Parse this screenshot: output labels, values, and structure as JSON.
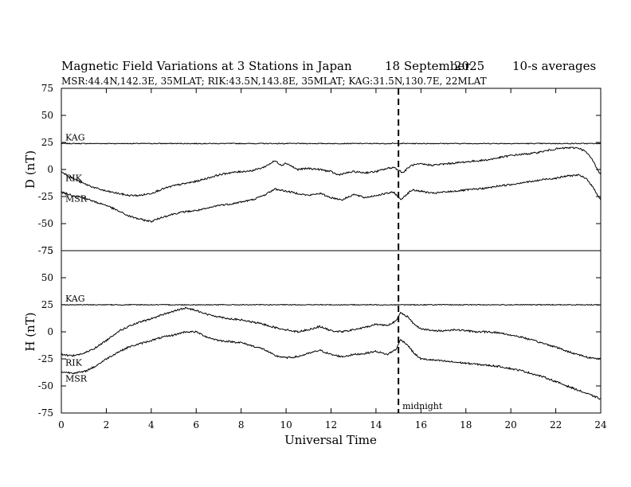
{
  "header": {
    "title": "Magnetic Field Variations at 3 Stations in Japan",
    "date": "18 September",
    "year": "2025",
    "averaging": "10-s averages",
    "stations": "MSR:44.4N,142.3E, 35MLAT;  RIK:43.5N,143.8E, 35MLAT;  KAG:31.5N,130.7E, 22MLAT"
  },
  "chart_data": {
    "type": "line",
    "xlabel": "Universal Time",
    "xlim": [
      0,
      24
    ],
    "x_ticks": [
      0,
      2,
      4,
      6,
      8,
      10,
      12,
      14,
      16,
      18,
      20,
      22,
      24
    ],
    "annotation": {
      "x": 15,
      "label": "midnight",
      "style": "dashed-vertical-line"
    },
    "panels": [
      {
        "id": "D",
        "ylabel": "D (nT)",
        "ylim": [
          -75,
          75
        ],
        "y_ticks": [
          75,
          50,
          25,
          0,
          -25,
          -50,
          -75
        ],
        "series": [
          {
            "name": "KAG",
            "label": "KAG",
            "noise": 0.4,
            "points": [
              [
                0,
                24
              ],
              [
                24,
                24
              ]
            ]
          },
          {
            "name": "RIK",
            "label": "RIK",
            "noise": 0.8,
            "points": [
              [
                0,
                -2
              ],
              [
                0.5,
                -8
              ],
              [
                1,
                -13
              ],
              [
                1.5,
                -17
              ],
              [
                2,
                -20
              ],
              [
                2.5,
                -22
              ],
              [
                3,
                -24
              ],
              [
                3.5,
                -24
              ],
              [
                4,
                -22
              ],
              [
                4.5,
                -18
              ],
              [
                5,
                -15
              ],
              [
                5.5,
                -13
              ],
              [
                6,
                -11
              ],
              [
                6.5,
                -8
              ],
              [
                7,
                -5
              ],
              [
                7.5,
                -3
              ],
              [
                8,
                -2
              ],
              [
                8.5,
                -1
              ],
              [
                9,
                2
              ],
              [
                9.5,
                8
              ],
              [
                9.8,
                4
              ],
              [
                10,
                6
              ],
              [
                10.5,
                0
              ],
              [
                11,
                1
              ],
              [
                11.5,
                0
              ],
              [
                12,
                -2
              ],
              [
                12.3,
                -5
              ],
              [
                12.5,
                -4
              ],
              [
                13,
                -2
              ],
              [
                13.5,
                -3
              ],
              [
                14,
                -2
              ],
              [
                14.5,
                1
              ],
              [
                14.8,
                2
              ],
              [
                15.2,
                -3
              ],
              [
                15.4,
                1
              ],
              [
                15.6,
                4
              ],
              [
                16,
                5
              ],
              [
                16.5,
                4
              ],
              [
                17,
                5
              ],
              [
                17.5,
                6
              ],
              [
                18,
                7
              ],
              [
                18.5,
                8
              ],
              [
                19,
                9
              ],
              [
                19.5,
                11
              ],
              [
                20,
                13
              ],
              [
                20.5,
                14
              ],
              [
                21,
                15
              ],
              [
                21.5,
                17
              ],
              [
                22,
                19
              ],
              [
                22.5,
                20
              ],
              [
                23,
                20
              ],
              [
                23.3,
                17
              ],
              [
                23.6,
                10
              ],
              [
                24,
                -5
              ]
            ]
          },
          {
            "name": "MSR",
            "label": "MSR",
            "noise": 0.8,
            "points": [
              [
                0,
                -21
              ],
              [
                0.5,
                -24
              ],
              [
                1,
                -26
              ],
              [
                1.5,
                -30
              ],
              [
                2,
                -33
              ],
              [
                2.5,
                -38
              ],
              [
                3,
                -43
              ],
              [
                3.5,
                -46
              ],
              [
                4,
                -48
              ],
              [
                4.5,
                -44
              ],
              [
                5,
                -41
              ],
              [
                5.5,
                -39
              ],
              [
                6,
                -38
              ],
              [
                6.5,
                -36
              ],
              [
                7,
                -33
              ],
              [
                7.5,
                -32
              ],
              [
                8,
                -30
              ],
              [
                8.5,
                -28
              ],
              [
                9,
                -24
              ],
              [
                9.5,
                -18
              ],
              [
                10,
                -20
              ],
              [
                10.5,
                -22
              ],
              [
                11,
                -24
              ],
              [
                11.5,
                -22
              ],
              [
                12,
                -26
              ],
              [
                12.5,
                -28
              ],
              [
                13,
                -23
              ],
              [
                13.5,
                -26
              ],
              [
                14,
                -24
              ],
              [
                14.5,
                -22
              ],
              [
                14.8,
                -21
              ],
              [
                15.1,
                -28
              ],
              [
                15.3,
                -24
              ],
              [
                15.6,
                -19
              ],
              [
                16,
                -20
              ],
              [
                16.5,
                -22
              ],
              [
                17,
                -21
              ],
              [
                17.5,
                -20
              ],
              [
                18,
                -19
              ],
              [
                18.5,
                -18
              ],
              [
                19,
                -17
              ],
              [
                19.5,
                -15
              ],
              [
                20,
                -14
              ],
              [
                20.5,
                -12
              ],
              [
                21,
                -11
              ],
              [
                21.5,
                -9
              ],
              [
                22,
                -8
              ],
              [
                22.5,
                -6
              ],
              [
                23,
                -5
              ],
              [
                23.4,
                -9
              ],
              [
                23.7,
                -18
              ],
              [
                24,
                -28
              ]
            ]
          }
        ]
      },
      {
        "id": "H",
        "ylabel": "H (nT)",
        "ylim": [
          -75,
          75
        ],
        "y_ticks": [
          75,
          50,
          25,
          0,
          -25,
          -50,
          -75
        ],
        "series": [
          {
            "name": "KAG",
            "label": "KAG",
            "noise": 0.4,
            "points": [
              [
                0,
                25
              ],
              [
                24,
                25
              ]
            ]
          },
          {
            "name": "RIK",
            "label": "RIK",
            "noise": 0.8,
            "points": [
              [
                0,
                -21
              ],
              [
                0.5,
                -22
              ],
              [
                1,
                -20
              ],
              [
                1.5,
                -15
              ],
              [
                2,
                -8
              ],
              [
                2.5,
                0
              ],
              [
                3,
                5
              ],
              [
                3.5,
                9
              ],
              [
                4,
                12
              ],
              [
                4.5,
                16
              ],
              [
                5,
                19
              ],
              [
                5.5,
                22
              ],
              [
                6,
                20
              ],
              [
                6.5,
                16
              ],
              [
                7,
                14
              ],
              [
                7.5,
                12
              ],
              [
                8,
                11
              ],
              [
                8.5,
                9
              ],
              [
                9,
                7
              ],
              [
                9.5,
                4
              ],
              [
                10,
                2
              ],
              [
                10.5,
                0
              ],
              [
                11,
                2
              ],
              [
                11.5,
                5
              ],
              [
                12,
                1
              ],
              [
                12.5,
                0
              ],
              [
                13,
                2
              ],
              [
                13.5,
                4
              ],
              [
                14,
                7
              ],
              [
                14.5,
                6
              ],
              [
                14.9,
                10
              ],
              [
                15.1,
                18
              ],
              [
                15.4,
                14
              ],
              [
                15.7,
                7
              ],
              [
                16,
                3
              ],
              [
                16.5,
                1
              ],
              [
                17,
                1
              ],
              [
                17.5,
                2
              ],
              [
                18,
                1
              ],
              [
                18.5,
                0
              ],
              [
                19,
                0
              ],
              [
                19.5,
                -1
              ],
              [
                20,
                -3
              ],
              [
                20.5,
                -5
              ],
              [
                21,
                -8
              ],
              [
                21.5,
                -11
              ],
              [
                22,
                -14
              ],
              [
                22.5,
                -18
              ],
              [
                23,
                -21
              ],
              [
                23.5,
                -24
              ],
              [
                24,
                -25
              ]
            ]
          },
          {
            "name": "MSR",
            "label": "MSR",
            "noise": 0.8,
            "points": [
              [
                0,
                -37
              ],
              [
                0.5,
                -38
              ],
              [
                1,
                -37
              ],
              [
                1.5,
                -32
              ],
              [
                2,
                -25
              ],
              [
                2.5,
                -19
              ],
              [
                3,
                -14
              ],
              [
                3.5,
                -11
              ],
              [
                4,
                -8
              ],
              [
                4.5,
                -5
              ],
              [
                5,
                -3
              ],
              [
                5.5,
                0
              ],
              [
                6,
                0
              ],
              [
                6.5,
                -5
              ],
              [
                7,
                -8
              ],
              [
                7.5,
                -9
              ],
              [
                8,
                -10
              ],
              [
                8.5,
                -13
              ],
              [
                9,
                -16
              ],
              [
                9.5,
                -22
              ],
              [
                10,
                -24
              ],
              [
                10.5,
                -23
              ],
              [
                11,
                -20
              ],
              [
                11.5,
                -17
              ],
              [
                12,
                -21
              ],
              [
                12.5,
                -23
              ],
              [
                13,
                -21
              ],
              [
                13.5,
                -20
              ],
              [
                14,
                -18
              ],
              [
                14.5,
                -21
              ],
              [
                14.9,
                -16
              ],
              [
                15.1,
                -7
              ],
              [
                15.4,
                -12
              ],
              [
                15.7,
                -20
              ],
              [
                16,
                -25
              ],
              [
                16.5,
                -26
              ],
              [
                17,
                -27
              ],
              [
                17.5,
                -28
              ],
              [
                18,
                -29
              ],
              [
                18.5,
                -30
              ],
              [
                19,
                -31
              ],
              [
                19.5,
                -32
              ],
              [
                20,
                -34
              ],
              [
                20.5,
                -36
              ],
              [
                21,
                -39
              ],
              [
                21.5,
                -42
              ],
              [
                22,
                -46
              ],
              [
                22.5,
                -50
              ],
              [
                23,
                -54
              ],
              [
                23.5,
                -58
              ],
              [
                24,
                -62
              ]
            ]
          }
        ]
      }
    ]
  }
}
